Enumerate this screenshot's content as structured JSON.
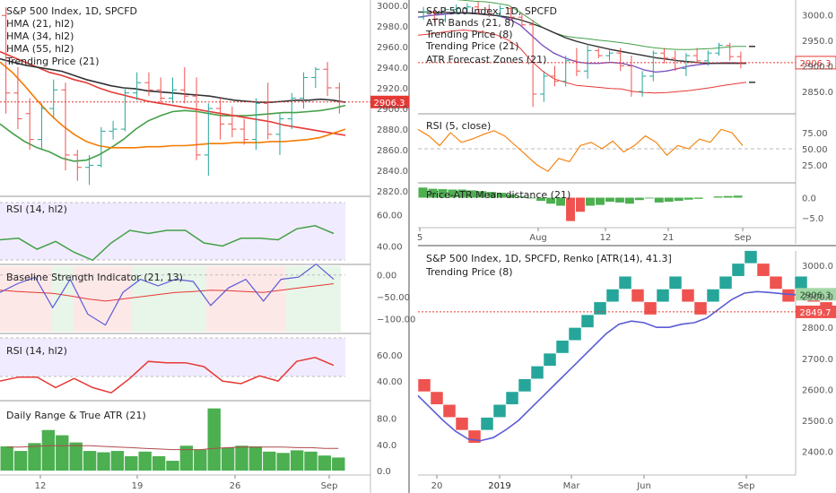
{
  "colors": {
    "up": "#26a69a",
    "down": "#ef5350",
    "bars": "#1c7e7e",
    "red": "#e53935",
    "orange": "#f57c00",
    "green": "#43a047",
    "dark": "#333333",
    "blue": "#5b5bd6",
    "purple": "#7e57c2",
    "rsiBand": "#f1ebff",
    "bsiUp": "#e8f5e9",
    "bsiDown": "#fde8e8",
    "atrGreen": "#4caf50",
    "grid": "#e6e6e6",
    "axisText": "#555555",
    "price": "#e53935",
    "priceTag2": "#ef5350",
    "priceTagRenko": "#a5d6a7"
  },
  "left": {
    "main": {
      "legend": [
        "S&P 500 Index, 1D, SPCFD",
        "HMA (21, hl2)",
        "HMA (34, hl2)",
        "HMA (55, hl2)",
        "Trending Price (21)"
      ],
      "price_label": "2906.3",
      "yticks": [
        "3000.0",
        "2980.0",
        "2960.0",
        "2940.0",
        "2920.0",
        "2900.0",
        "2880.0",
        "2860.0",
        "2840.0",
        "2820.0"
      ]
    },
    "rsi1": {
      "legend": "RSI (14, hl2)",
      "yticks": [
        "60.00",
        "40.00"
      ]
    },
    "bsi": {
      "legend": "Baseline Strength Indicator (21, 13)",
      "yticks": [
        "0.00",
        "−50.00",
        "−100.00"
      ]
    },
    "rsi2": {
      "legend": "RSI (14, hl2)",
      "yticks": [
        "60.00",
        "40.00"
      ]
    },
    "atr": {
      "legend": "Daily Range & True ATR (21)",
      "yticks": [
        "80.0",
        "40.0",
        "0.0"
      ]
    },
    "xticks": [
      "12",
      "19",
      "26",
      "Sep"
    ]
  },
  "topright": {
    "main": {
      "legend": [
        "S&P 500 Index, 1D, SPCFD",
        "ATR Bands (21, 8)",
        "Trending Price (8)",
        "Trending Price (21)",
        "ATR Forecast Zones (21)"
      ],
      "price_label": "2906.3",
      "yticks": [
        "3000.0",
        "2950.0",
        "2900.0",
        "2850.0"
      ]
    },
    "rsi": {
      "legend": "RSI (5, close)",
      "yticks": [
        "75.00",
        "50.00",
        "25.00"
      ]
    },
    "pamd": {
      "legend": "Price-ATR Mean distance (21)",
      "yticks": [
        "0.0",
        "−5.0"
      ]
    },
    "xticks": [
      "5",
      "Aug",
      "12",
      "21",
      "Sep"
    ]
  },
  "renko": {
    "legend": [
      "S&P 500 Index, 1D, SPCFD, Renko [ATR(14), 41.3]",
      "Trending Price (8)"
    ],
    "price_label": "2906.3",
    "price_label2": "2849.7",
    "yticks": [
      "3000.0",
      "2900.0",
      "2800.0",
      "2700.0",
      "2600.0",
      "2500.0",
      "2400.0"
    ],
    "xticks": [
      "20",
      "2019",
      "Mar",
      "Jun",
      "Sep"
    ]
  },
  "chart_data": [
    {
      "type": "candlestick",
      "title": "S&P 500 Index, 1D, SPCFD",
      "ylim": [
        2815,
        3005
      ],
      "candles": [
        [
          2990,
          2998,
          2895,
          2915
        ],
        [
          2915,
          2940,
          2880,
          2890
        ],
        [
          2895,
          2910,
          2860,
          2870
        ],
        [
          2870,
          2905,
          2860,
          2900
        ],
        [
          2900,
          2928,
          2890,
          2918
        ],
        [
          2918,
          2925,
          2840,
          2855
        ],
        [
          2855,
          2860,
          2830,
          2843
        ],
        [
          2843,
          2855,
          2826,
          2845
        ],
        [
          2845,
          2882,
          2843,
          2878
        ],
        [
          2878,
          2888,
          2870,
          2880
        ],
        [
          2880,
          2920,
          2878,
          2915
        ],
        [
          2915,
          2935,
          2908,
          2925
        ],
        [
          2925,
          2935,
          2912,
          2918
        ],
        [
          2918,
          2930,
          2905,
          2910
        ],
        [
          2910,
          2930,
          2905,
          2918
        ],
        [
          2918,
          2940,
          2905,
          2912
        ],
        [
          2912,
          2930,
          2850,
          2855
        ],
        [
          2855,
          2905,
          2835,
          2900
        ],
        [
          2900,
          2910,
          2870,
          2885
        ],
        [
          2885,
          2902,
          2872,
          2880
        ],
        [
          2880,
          2890,
          2865,
          2870
        ],
        [
          2870,
          2910,
          2860,
          2905
        ],
        [
          2905,
          2925,
          2870,
          2875
        ],
        [
          2875,
          2895,
          2855,
          2890
        ],
        [
          2890,
          2915,
          2880,
          2910
        ],
        [
          2910,
          2935,
          2900,
          2930
        ],
        [
          2930,
          2940,
          2920,
          2938
        ],
        [
          2938,
          2945,
          2912,
          2920
        ],
        [
          2920,
          2925,
          2895,
          2906.3
        ]
      ],
      "series": [
        {
          "name": "HMA (21, hl2)",
          "values": [
            2885,
            2876,
            2868,
            2862,
            2858,
            2852,
            2849,
            2850,
            2855,
            2862,
            2870,
            2880,
            2888,
            2893,
            2897,
            2898,
            2897,
            2895,
            2893,
            2893,
            2893,
            2894,
            2895,
            2896,
            2896,
            2897,
            2898,
            2900,
            2903
          ]
        },
        {
          "name": "HMA (34, hl2)",
          "values": [
            2955,
            2950,
            2945,
            2940,
            2935,
            2932,
            2928,
            2925,
            2920,
            2916,
            2913,
            2910,
            2907,
            2905,
            2903,
            2901,
            2899,
            2897,
            2895,
            2893,
            2891,
            2889,
            2887,
            2884,
            2882,
            2880,
            2878,
            2876,
            2874
          ]
        },
        {
          "name": "HMA (55, hl2)",
          "values": [
            2945,
            2935,
            2922,
            2908,
            2895,
            2884,
            2875,
            2868,
            2864,
            2862,
            2862,
            2862,
            2863,
            2863,
            2864,
            2864,
            2865,
            2866,
            2866,
            2867,
            2867,
            2867,
            2868,
            2868,
            2869,
            2870,
            2872,
            2876,
            2880
          ]
        },
        {
          "name": "Trending Price (21)",
          "values": [
            2948,
            2945,
            2942,
            2940,
            2938,
            2936,
            2932,
            2928,
            2925,
            2922,
            2920,
            2919,
            2917,
            2916,
            2915,
            2914,
            2913,
            2912,
            2910,
            2908,
            2907,
            2906,
            2906,
            2907,
            2908,
            2908,
            2909,
            2908,
            2906
          ]
        }
      ]
    },
    {
      "type": "line",
      "title": "RSI (14, hl2)",
      "ylim": [
        30,
        70
      ],
      "series": [
        {
          "name": "RSI (14, hl2)",
          "values": [
            44,
            45,
            38,
            43,
            36,
            31,
            42,
            50,
            48,
            50,
            50,
            42,
            40,
            45,
            45,
            44,
            51,
            53,
            48
          ]
        }
      ]
    },
    {
      "type": "line",
      "title": "Baseline Strength Indicator (21, 13)",
      "ylim": [
        -130,
        20
      ],
      "series": [
        {
          "name": "Baseline Strength Indicator (21, 13)",
          "values": [
            -40,
            -20,
            -5,
            -75,
            -10,
            -90,
            -115,
            -40,
            -10,
            -25,
            -10,
            -15,
            -70,
            -30,
            -10,
            -60,
            -10,
            -5,
            25,
            -10
          ]
        },
        {
          "name": "signal",
          "values": [
            -35,
            -38,
            -40,
            -42,
            -48,
            -55,
            -60,
            -55,
            -50,
            -45,
            -40,
            -38,
            -35,
            -36,
            -38,
            -40,
            -35,
            -30,
            -25,
            -20
          ]
        }
      ]
    },
    {
      "type": "line",
      "title": "RSI (14, hl2)",
      "ylim": [
        25,
        75
      ],
      "series": [
        {
          "name": "RSI (14, hl2)",
          "values": [
            40,
            43,
            43,
            35,
            42,
            35,
            31,
            42,
            55,
            54,
            54,
            51,
            40,
            38,
            44,
            40,
            55,
            58,
            52
          ]
        }
      ]
    },
    {
      "type": "bar",
      "title": "Daily Range & True ATR (21)",
      "ylim": [
        0,
        100
      ],
      "values": [
        37,
        30,
        42,
        62,
        54,
        43,
        30,
        28,
        30,
        22,
        29,
        22,
        15,
        38,
        32,
        95,
        35,
        38,
        37,
        29,
        27,
        31,
        29,
        23,
        20
      ],
      "series": [
        {
          "name": "True ATR",
          "values": [
            36,
            36,
            37,
            38,
            38,
            38,
            38,
            37,
            36,
            35,
            34,
            33,
            32,
            32,
            32,
            34,
            35,
            36,
            36,
            36,
            36,
            35,
            35,
            34,
            34
          ]
        }
      ]
    },
    {
      "type": "candlestick",
      "title": "S&P 500 Index, 1D, SPCFD",
      "ylim": [
        2810,
        3025
      ],
      "candles": [
        [
          2995,
          3015,
          2990,
          3005
        ],
        [
          3005,
          3010,
          2985,
          2992
        ],
        [
          2990,
          3015,
          2985,
          3010
        ],
        [
          3010,
          3020,
          3000,
          3012
        ],
        [
          3012,
          3022,
          3005,
          3015
        ],
        [
          3015,
          3025,
          3000,
          3010
        ],
        [
          3010,
          3020,
          2995,
          3002
        ],
        [
          3002,
          3018,
          2995,
          3012
        ],
        [
          3012,
          3015,
          2990,
          2995
        ],
        [
          2995,
          3002,
          2975,
          2980
        ],
        [
          2980,
          2990,
          2820,
          2845
        ],
        [
          2845,
          2890,
          2830,
          2880
        ],
        [
          2880,
          2900,
          2860,
          2870
        ],
        [
          2870,
          2920,
          2860,
          2910
        ],
        [
          2910,
          2935,
          2880,
          2890
        ],
        [
          2890,
          2940,
          2875,
          2930
        ],
        [
          2930,
          2935,
          2915,
          2920
        ],
        [
          2920,
          2930,
          2910,
          2925
        ],
        [
          2925,
          2935,
          2890,
          2900
        ],
        [
          2900,
          2920,
          2840,
          2850
        ],
        [
          2850,
          2890,
          2840,
          2880
        ],
        [
          2880,
          2930,
          2870,
          2925
        ],
        [
          2925,
          2935,
          2905,
          2915
        ],
        [
          2915,
          2930,
          2890,
          2895
        ],
        [
          2895,
          2925,
          2880,
          2920
        ],
        [
          2920,
          2935,
          2905,
          2910
        ],
        [
          2910,
          2930,
          2900,
          2925
        ],
        [
          2925,
          2945,
          2920,
          2940
        ],
        [
          2940,
          2945,
          2910,
          2918
        ],
        [
          2918,
          2928,
          2895,
          2906.3
        ]
      ],
      "series": [
        {
          "name": "ATR Bands upper",
          "values": [
            3035,
            3035,
            3033,
            3030,
            3028,
            3026,
            3025,
            3022,
            3018,
            3005,
            2990,
            2975,
            2965,
            2958,
            2955,
            2953,
            2950,
            2948,
            2945,
            2942,
            2938,
            2935,
            2933,
            2932,
            2932,
            2933,
            2934,
            2936,
            2938,
            2938
          ]
        },
        {
          "name": "ATR Bands lower",
          "values": [
            2960,
            2962,
            2965,
            2968,
            2970,
            2968,
            2965,
            2960,
            2950,
            2935,
            2910,
            2890,
            2875,
            2868,
            2862,
            2860,
            2858,
            2856,
            2855,
            2850,
            2848,
            2847,
            2848,
            2850,
            2852,
            2855,
            2858,
            2862,
            2865,
            2868
          ]
        },
        {
          "name": "Trending Price (8)",
          "values": [
            2995,
            2998,
            3000,
            3002,
            3004,
            3003,
            3000,
            2998,
            2992,
            2980,
            2960,
            2940,
            2925,
            2915,
            2908,
            2905,
            2905,
            2907,
            2905,
            2900,
            2892,
            2888,
            2890,
            2895,
            2900,
            2903,
            2905,
            2906,
            2906,
            2905
          ]
        },
        {
          "name": "Trending Price (21)",
          "values": [
            3005,
            3005,
            3004,
            3004,
            3003,
            3002,
            3000,
            2998,
            2995,
            2990,
            2983,
            2975,
            2965,
            2955,
            2948,
            2942,
            2937,
            2932,
            2928,
            2924,
            2920,
            2916,
            2913,
            2910,
            2908,
            2906,
            2905,
            2905,
            2905,
            2905
          ]
        }
      ]
    },
    {
      "type": "line",
      "title": "RSI (5, close)",
      "ylim": [
        0,
        100
      ],
      "series": [
        {
          "name": "RSI (5, close)",
          "values": [
            80,
            70,
            55,
            75,
            60,
            65,
            72,
            78,
            70,
            55,
            40,
            25,
            15,
            35,
            30,
            55,
            60,
            50,
            62,
            45,
            55,
            70,
            60,
            40,
            55,
            50,
            65,
            60,
            80,
            75,
            55
          ]
        }
      ]
    },
    {
      "type": "bar",
      "title": "Price-ATR Mean distance (21)",
      "ylim": [
        -7,
        3
      ],
      "values": [
        2.5,
        2.2,
        2.1,
        2.0,
        2.0,
        1.8,
        1.6,
        1.4,
        1.2,
        0.8,
        0.3,
        -0.2,
        -0.8,
        -1.5,
        -2.0,
        -5.8,
        -3.5,
        -2.0,
        -1.8,
        -1.0,
        -1.2,
        -1.5,
        -0.6,
        -0.2,
        -1.2,
        -1.0,
        -0.8,
        -0.5,
        -0.3,
        0.0,
        0.3,
        0.4,
        0.5
      ],
      "ylabel": ""
    },
    {
      "type": "renko",
      "title": "S&P 500 Index, 1D, SPCFD, Renko [ATR(14), 41.3]",
      "ylim": [
        2330,
        3040
      ],
      "box_size": 41.3,
      "bricks": [
        -1,
        -1,
        -1,
        -1,
        -1,
        1,
        1,
        1,
        1,
        1,
        1,
        1,
        1,
        1,
        1,
        1,
        1,
        -1,
        -1,
        1,
        1,
        -1,
        -1,
        1,
        1,
        1,
        1,
        -1,
        -1,
        -1,
        1,
        -1,
        -1
      ],
      "start_price": 2634,
      "series": [
        {
          "name": "Trending Price (8)",
          "values": [
            2580,
            2540,
            2500,
            2465,
            2440,
            2435,
            2445,
            2470,
            2500,
            2540,
            2580,
            2620,
            2660,
            2700,
            2740,
            2780,
            2810,
            2820,
            2815,
            2800,
            2800,
            2810,
            2815,
            2830,
            2860,
            2890,
            2910,
            2915,
            2912,
            2908,
            2905,
            2903,
            2903
          ]
        }
      ]
    }
  ]
}
